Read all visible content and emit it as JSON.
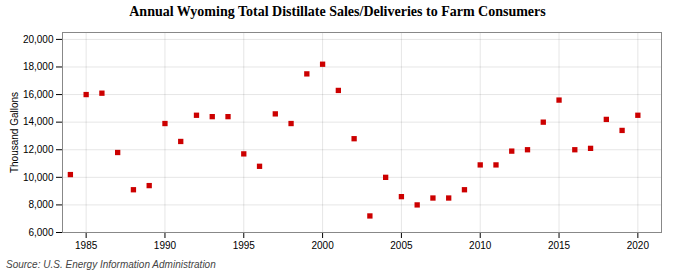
{
  "chart_data": {
    "type": "scatter",
    "title": "Annual Wyoming Total Distillate Sales/Deliveries to Farm Consumers",
    "ylabel": "Thousand Gallons",
    "annotations": [
      "Source: U.S. Energy Information Administration"
    ],
    "color": "#cc0000",
    "marker": "square",
    "grid": true,
    "xlim": [
      1983.5,
      2021.5
    ],
    "ylim": [
      6000,
      20500
    ],
    "xticks": [
      1985,
      1990,
      1995,
      2000,
      2005,
      2010,
      2015,
      2020
    ],
    "yticks": [
      {
        "value": 6000,
        "label": "6,000"
      },
      {
        "value": 8000,
        "label": "8,000"
      },
      {
        "value": 10000,
        "label": "10,000"
      },
      {
        "value": 12000,
        "label": "12,000"
      },
      {
        "value": 14000,
        "label": "14,000"
      },
      {
        "value": 16000,
        "label": "16,000"
      },
      {
        "value": 18000,
        "label": "18,000"
      },
      {
        "value": 20000,
        "label": "20,000"
      }
    ],
    "x": [
      1984,
      1985,
      1986,
      1987,
      1988,
      1989,
      1990,
      1991,
      1992,
      1993,
      1994,
      1995,
      1996,
      1997,
      1998,
      1999,
      2000,
      2001,
      2002,
      2003,
      2004,
      2005,
      2006,
      2007,
      2008,
      2009,
      2010,
      2011,
      2012,
      2013,
      2014,
      2015,
      2016,
      2017,
      2018,
      2019,
      2020
    ],
    "values": [
      10200,
      16000,
      16100,
      11800,
      9100,
      9400,
      13900,
      12600,
      14500,
      14400,
      14400,
      11700,
      10800,
      14600,
      13900,
      17500,
      18200,
      16300,
      12800,
      7200,
      10000,
      8600,
      8000,
      8500,
      8500,
      9100,
      10900,
      10900,
      11900,
      12000,
      14000,
      15600,
      12000,
      12100,
      14200,
      13400,
      14500
    ]
  }
}
